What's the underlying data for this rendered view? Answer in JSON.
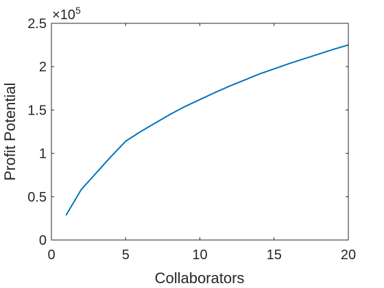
{
  "chart_data": {
    "type": "line",
    "title": "",
    "xlabel": "Collaborators",
    "ylabel": "Profit Potential",
    "xlim": [
      0,
      20
    ],
    "ylim": [
      0,
      250000
    ],
    "x_ticks": [
      0,
      5,
      10,
      15,
      20
    ],
    "x_tick_labels": [
      "0",
      "5",
      "10",
      "15",
      "20"
    ],
    "y_ticks": [
      0,
      50000,
      100000,
      150000,
      200000,
      250000
    ],
    "y_tick_labels": [
      "0",
      "0.5",
      "1",
      "1.5",
      "2",
      "2.5"
    ],
    "y_exponent": {
      "base": "×10",
      "power": "5"
    },
    "grid": false,
    "box": true,
    "series": [
      {
        "color": "#0072BD",
        "x": [
          1,
          2,
          3,
          4,
          5,
          6,
          7,
          8,
          9,
          10,
          11,
          12,
          13,
          14,
          15,
          16,
          17,
          18,
          19,
          20
        ],
        "y": [
          29000,
          58000,
          77000,
          96000,
          114000,
          125000,
          135000,
          145000,
          154000,
          162000,
          170000,
          177500,
          184500,
          191500,
          197500,
          203500,
          209000,
          214500,
          220000,
          225000
        ]
      }
    ]
  }
}
